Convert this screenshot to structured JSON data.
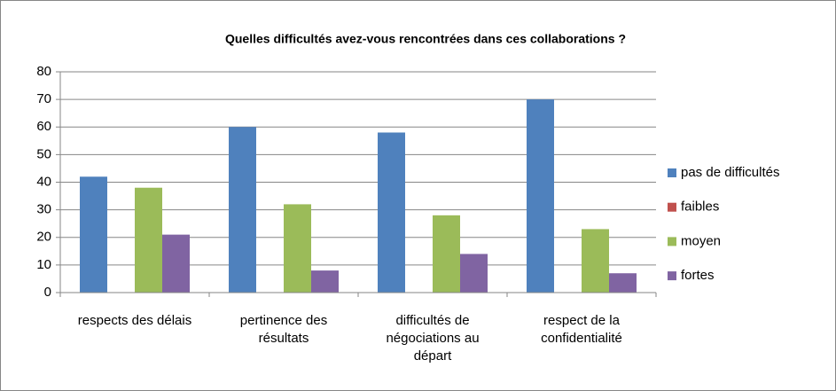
{
  "chart_data": {
    "type": "bar",
    "title": "Quelles difficultés avez-vous rencontrées dans ces collaborations ?",
    "categories": [
      "respects des délais",
      "pertinence des résultats",
      "difficultés de négociations au départ",
      "respect de la confidentialité"
    ],
    "series": [
      {
        "name": "pas de difficultés",
        "color": "#4f81bd",
        "values": [
          42,
          60,
          58,
          70
        ]
      },
      {
        "name": "faibles",
        "color": "#c0504d",
        "values": [
          0,
          0,
          0,
          0
        ]
      },
      {
        "name": "moyen",
        "color": "#9bbb59",
        "values": [
          38,
          32,
          28,
          23
        ]
      },
      {
        "name": "fortes",
        "color": "#8064a2",
        "values": [
          21,
          8,
          14,
          7
        ]
      }
    ],
    "ylim": [
      0,
      80
    ],
    "yticks": [
      0,
      10,
      20,
      30,
      40,
      50,
      60,
      70,
      80
    ],
    "grid": true,
    "legend": "right"
  }
}
